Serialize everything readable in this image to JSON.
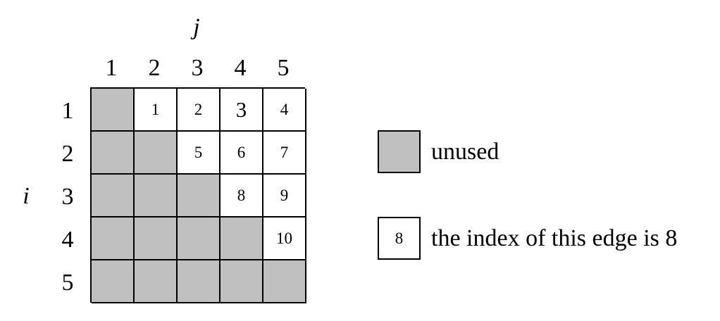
{
  "axes": {
    "column_label": "j",
    "row_label": "i"
  },
  "column_headers": [
    "1",
    "2",
    "3",
    "4",
    "5"
  ],
  "row_headers": [
    "1",
    "2",
    "3",
    "4",
    "5"
  ],
  "matrix": {
    "cells": [
      [
        "",
        "1",
        "2",
        "3",
        "4"
      ],
      [
        "",
        "",
        "5",
        "6",
        "7"
      ],
      [
        "",
        "",
        "",
        "8",
        "9"
      ],
      [
        "",
        "",
        "",
        "",
        "10"
      ],
      [
        "",
        "",
        "",
        "",
        ""
      ]
    ]
  },
  "legend": {
    "unused_label": "unused",
    "index_example": "8",
    "index_label": "the index of this edge is 8"
  },
  "colors": {
    "unused_fill": "#c0c0c0",
    "used_fill": "#ffffff",
    "border": "#000000"
  }
}
